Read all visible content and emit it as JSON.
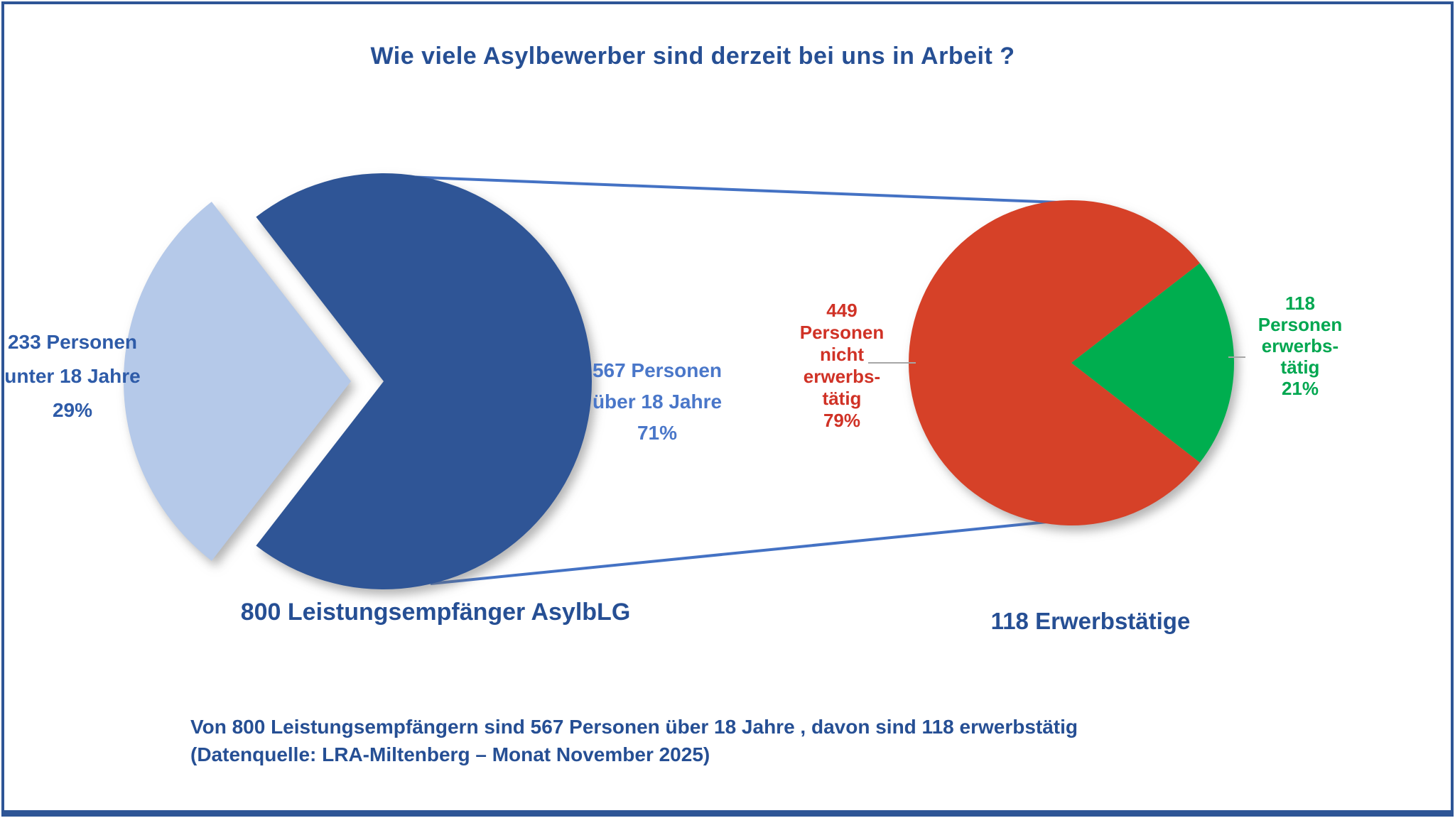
{
  "page": {
    "title": "Wie viele Asylbewerber sind derzeit bei uns in Arbeit ?",
    "footer_line1": "Von 800 Leistungsempfängern sind 567 Personen über 18 Jahre , davon sind 118 erwerbstätig",
    "footer_line2": "(Datenquelle: LRA-Miltenberg – Monat November 2025)"
  },
  "chart_data": [
    {
      "type": "pie",
      "name": "left-pie",
      "caption": "800 Leistungsempfänger AsylbLG",
      "total": 800,
      "slices": [
        {
          "label_lines": [
            "233 Personen",
            "unter 18 Jahre",
            "29%"
          ],
          "value": 233,
          "pct": 29,
          "color": "#b5c9e9",
          "exploded": true
        },
        {
          "label_lines": [
            "567 Personen",
            "über 18 Jahre",
            "71%"
          ],
          "value": 567,
          "pct": 71,
          "color": "#2f5596",
          "exploded": false
        }
      ],
      "layout": {
        "exploded_slice_direction": "left",
        "legend": false
      }
    },
    {
      "type": "pie",
      "name": "right-pie",
      "caption": "118 Erwerbstätige",
      "total": 567,
      "slices": [
        {
          "label_lines": [
            "449",
            "Personen",
            "nicht",
            "erwerbs-",
            "tätig",
            "79%"
          ],
          "value": 449,
          "pct": 79,
          "color": "#d64128",
          "exploded": false
        },
        {
          "label_lines": [
            "118",
            "Personen",
            "erwerbs-",
            "tätig",
            "21%"
          ],
          "value": 118,
          "pct": 21,
          "color": "#00ae4f",
          "exploded": false
        }
      ],
      "layout": {
        "highlight_slice_direction": "right",
        "legend": false
      }
    }
  ],
  "colors": {
    "frame": "#2e5596",
    "background": "#ffffff",
    "title_text": "#264f94",
    "caption_text": "#264f94",
    "footer_text": "#264f94",
    "label_under18_text": "#2e5ba8",
    "label_over18_text": "#4a77c9",
    "label_not_working_text": "#d03226",
    "label_working_text": "#00a750",
    "series_line": "#4472c4",
    "leader_line": "#a6a6a6"
  }
}
